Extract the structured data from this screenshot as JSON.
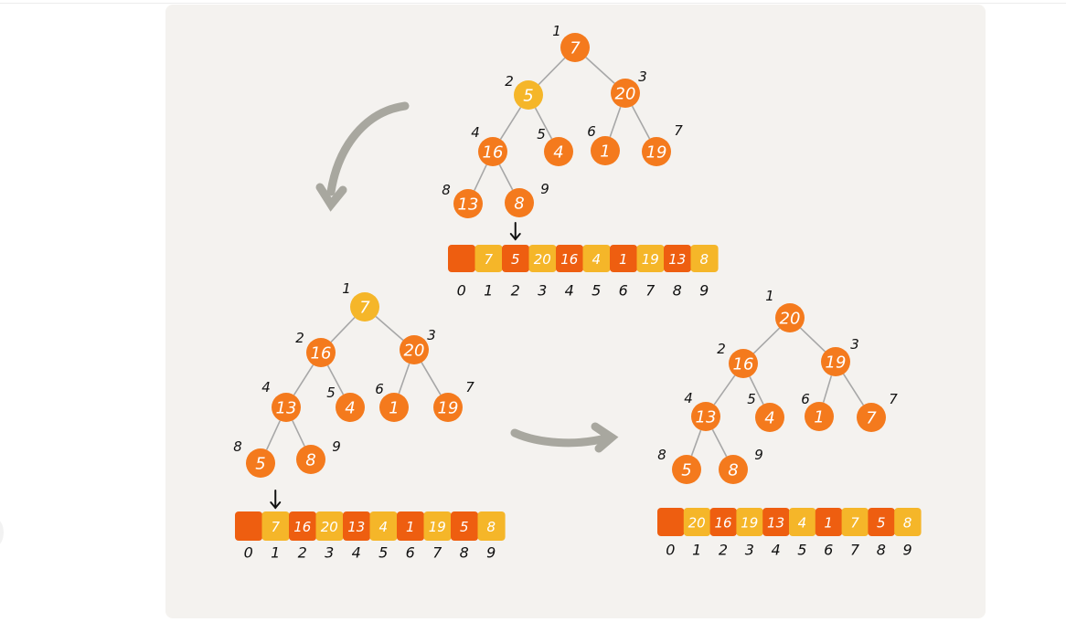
{
  "colors": {
    "orange": "#f47a1d",
    "red_orange": "#ee5e10",
    "yellow": "#f5b629",
    "panel": "#f4f2ef",
    "edge": "#a7a7a7",
    "arrow": "#a8a79f"
  },
  "trees": [
    {
      "id": "top",
      "nodes": [
        {
          "pos": "1",
          "value": "7",
          "color": "orange"
        },
        {
          "pos": "2",
          "value": "5",
          "color": "yellow"
        },
        {
          "pos": "3",
          "value": "20",
          "color": "orange"
        },
        {
          "pos": "4",
          "value": "16",
          "color": "orange"
        },
        {
          "pos": "5",
          "value": "4",
          "color": "orange"
        },
        {
          "pos": "6",
          "value": "1",
          "color": "orange"
        },
        {
          "pos": "7",
          "value": "19",
          "color": "orange"
        },
        {
          "pos": "8",
          "value": "13",
          "color": "orange"
        },
        {
          "pos": "9",
          "value": "8",
          "color": "orange"
        }
      ],
      "array": {
        "indices": [
          "0",
          "1",
          "2",
          "3",
          "4",
          "5",
          "6",
          "7",
          "8",
          "9"
        ],
        "cells": [
          {
            "value": "",
            "color": "red_orange"
          },
          {
            "value": "7",
            "color": "yellow"
          },
          {
            "value": "5",
            "color": "red_orange"
          },
          {
            "value": "20",
            "color": "yellow"
          },
          {
            "value": "16",
            "color": "red_orange"
          },
          {
            "value": "4",
            "color": "yellow"
          },
          {
            "value": "1",
            "color": "red_orange"
          },
          {
            "value": "19",
            "color": "yellow"
          },
          {
            "value": "13",
            "color": "red_orange"
          },
          {
            "value": "8",
            "color": "yellow"
          }
        ],
        "pointer_index": 2
      }
    },
    {
      "id": "left",
      "nodes": [
        {
          "pos": "1",
          "value": "7",
          "color": "yellow"
        },
        {
          "pos": "2",
          "value": "16",
          "color": "orange"
        },
        {
          "pos": "3",
          "value": "20",
          "color": "orange"
        },
        {
          "pos": "4",
          "value": "13",
          "color": "orange"
        },
        {
          "pos": "5",
          "value": "4",
          "color": "orange"
        },
        {
          "pos": "6",
          "value": "1",
          "color": "orange"
        },
        {
          "pos": "7",
          "value": "19",
          "color": "orange"
        },
        {
          "pos": "8",
          "value": "5",
          "color": "orange"
        },
        {
          "pos": "9",
          "value": "8",
          "color": "orange"
        }
      ],
      "array": {
        "indices": [
          "0",
          "1",
          "2",
          "3",
          "4",
          "5",
          "6",
          "7",
          "8",
          "9"
        ],
        "cells": [
          {
            "value": "",
            "color": "red_orange"
          },
          {
            "value": "7",
            "color": "yellow"
          },
          {
            "value": "16",
            "color": "red_orange"
          },
          {
            "value": "20",
            "color": "yellow"
          },
          {
            "value": "13",
            "color": "red_orange"
          },
          {
            "value": "4",
            "color": "yellow"
          },
          {
            "value": "1",
            "color": "red_orange"
          },
          {
            "value": "19",
            "color": "yellow"
          },
          {
            "value": "5",
            "color": "red_orange"
          },
          {
            "value": "8",
            "color": "yellow"
          }
        ],
        "pointer_index": 1
      }
    },
    {
      "id": "right",
      "nodes": [
        {
          "pos": "1",
          "value": "20",
          "color": "orange"
        },
        {
          "pos": "2",
          "value": "16",
          "color": "orange"
        },
        {
          "pos": "3",
          "value": "19",
          "color": "orange"
        },
        {
          "pos": "4",
          "value": "13",
          "color": "orange"
        },
        {
          "pos": "5",
          "value": "4",
          "color": "orange"
        },
        {
          "pos": "6",
          "value": "1",
          "color": "orange"
        },
        {
          "pos": "7",
          "value": "7",
          "color": "orange"
        },
        {
          "pos": "8",
          "value": "5",
          "color": "orange"
        },
        {
          "pos": "9",
          "value": "8",
          "color": "orange"
        }
      ],
      "array": {
        "indices": [
          "0",
          "1",
          "2",
          "3",
          "4",
          "5",
          "6",
          "7",
          "8",
          "9"
        ],
        "cells": [
          {
            "value": "",
            "color": "red_orange"
          },
          {
            "value": "20",
            "color": "yellow"
          },
          {
            "value": "16",
            "color": "red_orange"
          },
          {
            "value": "19",
            "color": "yellow"
          },
          {
            "value": "13",
            "color": "red_orange"
          },
          {
            "value": "4",
            "color": "yellow"
          },
          {
            "value": "1",
            "color": "red_orange"
          },
          {
            "value": "7",
            "color": "yellow"
          },
          {
            "value": "5",
            "color": "red_orange"
          },
          {
            "value": "8",
            "color": "yellow"
          }
        ],
        "pointer_index": null
      }
    }
  ],
  "transitions": [
    {
      "from": "top",
      "to": "left",
      "icon": "curved-arrow-icon"
    },
    {
      "from": "left",
      "to": "right",
      "icon": "curved-arrow-icon"
    }
  ]
}
